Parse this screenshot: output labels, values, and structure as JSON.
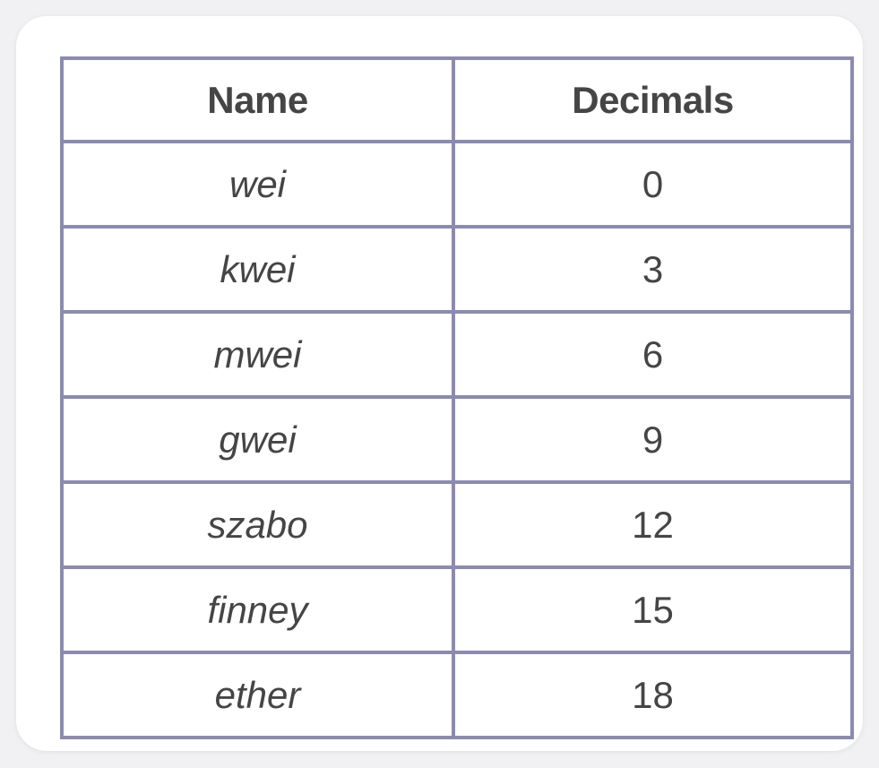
{
  "table": {
    "headers": [
      "Name",
      "Decimals"
    ],
    "rows": [
      {
        "name": "wei",
        "decimals": "0"
      },
      {
        "name": "kwei",
        "decimals": "3"
      },
      {
        "name": "mwei",
        "decimals": "6"
      },
      {
        "name": "gwei",
        "decimals": "9"
      },
      {
        "name": "szabo",
        "decimals": "12"
      },
      {
        "name": "finney",
        "decimals": "15"
      },
      {
        "name": "ether",
        "decimals": "18"
      }
    ]
  },
  "colors": {
    "border": "#8b8bb1",
    "text": "#454545",
    "card": "#ffffff",
    "background": "#f1f1f3"
  }
}
